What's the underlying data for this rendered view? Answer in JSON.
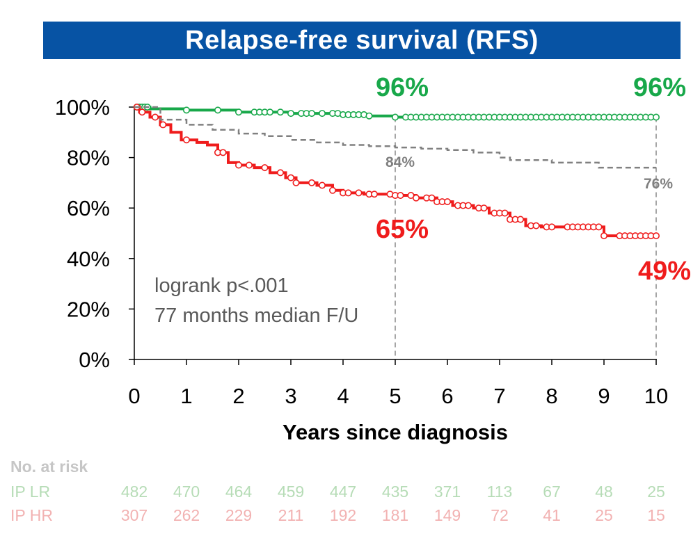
{
  "colors": {
    "title_bg": "#0753a4",
    "green": "#18a84a",
    "red": "#ef1c1c",
    "gray": "#808080",
    "risk_green": "#b6dcb6",
    "risk_red": "#f2b2b2",
    "risk_header": "#c6c6c6"
  },
  "chart_data": {
    "type": "line",
    "title": "Relapse-free survival (RFS)",
    "xlabel": "Years since diagnosis",
    "ylabel": "",
    "xlim": [
      0,
      10
    ],
    "ylim": [
      0,
      100
    ],
    "x_ticks": [
      "0",
      "1",
      "2",
      "3",
      "4",
      "5",
      "6",
      "7",
      "8",
      "9",
      "10"
    ],
    "y_ticks": [
      "0%",
      "20%",
      "40%",
      "60%",
      "80%",
      "100%"
    ],
    "grid": false,
    "annotation_lines": [
      "logrank p<.001",
      "77 months median F/U"
    ],
    "reference_lines_x": [
      5,
      10
    ],
    "series": [
      {
        "name": "IP LR",
        "color": "#18a84a",
        "points": [
          [
            0,
            100
          ],
          [
            0.3,
            99.3
          ],
          [
            1,
            98.8
          ],
          [
            2,
            98
          ],
          [
            3,
            97.5
          ],
          [
            4,
            97
          ],
          [
            4.5,
            96.5
          ],
          [
            5,
            96
          ],
          [
            6,
            96
          ],
          [
            7,
            96
          ],
          [
            8,
            96
          ],
          [
            9,
            96
          ],
          [
            10,
            96
          ]
        ],
        "censor_x": [
          0.05,
          0.1,
          0.15,
          0.2,
          0.25,
          1,
          1.6,
          2,
          2.3,
          2.4,
          2.5,
          2.6,
          2.8,
          3,
          3.2,
          3.3,
          3.4,
          3.6,
          3.8,
          3.9,
          4,
          4.1,
          4.2,
          4.3,
          4.4,
          4.5,
          5,
          5.2,
          5.3,
          5.4,
          5.5,
          5.6,
          5.7,
          5.8,
          5.9,
          6,
          6.1,
          6.2,
          6.3,
          6.4,
          6.5,
          6.6,
          6.7,
          6.8,
          6.9,
          7,
          7.1,
          7.2,
          7.3,
          7.4,
          7.5,
          7.6,
          7.7,
          7.8,
          7.9,
          8,
          8.1,
          8.2,
          8.3,
          8.4,
          8.5,
          8.6,
          8.7,
          8.8,
          8.9,
          9,
          9.1,
          9.2,
          9.3,
          9.4,
          9.5,
          9.6,
          9.7,
          9.8,
          9.9,
          10
        ],
        "labels": [
          {
            "x": 5,
            "text": "96%"
          },
          {
            "x": 10,
            "text": "96%"
          }
        ]
      },
      {
        "name": "IP HR",
        "color": "#ef1c1c",
        "points": [
          [
            0,
            100
          ],
          [
            0.1,
            98
          ],
          [
            0.3,
            96
          ],
          [
            0.5,
            93
          ],
          [
            0.7,
            90
          ],
          [
            0.9,
            87
          ],
          [
            1.2,
            86
          ],
          [
            1.4,
            85
          ],
          [
            1.6,
            82
          ],
          [
            1.8,
            78
          ],
          [
            2,
            77
          ],
          [
            2.3,
            76
          ],
          [
            2.6,
            74
          ],
          [
            2.9,
            72
          ],
          [
            3.1,
            70
          ],
          [
            3.5,
            69
          ],
          [
            3.8,
            67
          ],
          [
            4,
            66
          ],
          [
            4.4,
            65.5
          ],
          [
            5,
            65
          ],
          [
            5.4,
            64
          ],
          [
            5.8,
            62.5
          ],
          [
            6.1,
            61
          ],
          [
            6.5,
            60
          ],
          [
            6.8,
            58
          ],
          [
            7.2,
            55.5
          ],
          [
            7.5,
            53
          ],
          [
            7.8,
            52.5
          ],
          [
            8.8,
            52.5
          ],
          [
            9,
            49
          ],
          [
            10,
            49
          ]
        ],
        "censor_x": [
          0.05,
          0.15,
          0.4,
          0.55,
          1,
          1.6,
          1.7,
          2,
          2.2,
          2.5,
          2.8,
          3,
          3.1,
          3.4,
          3.6,
          3.8,
          4,
          4.1,
          4.3,
          4.5,
          4.6,
          4.9,
          5,
          5.1,
          5.3,
          5.4,
          5.6,
          5.7,
          5.8,
          5.9,
          6,
          6.2,
          6.3,
          6.4,
          6.6,
          6.7,
          6.9,
          7,
          7.1,
          7.2,
          7.3,
          7.4,
          7.6,
          7.7,
          7.9,
          8,
          8.3,
          8.4,
          8.5,
          8.6,
          8.7,
          8.8,
          8.9,
          9,
          9.3,
          9.4,
          9.5,
          9.6,
          9.7,
          9.8,
          9.9,
          10
        ],
        "labels": [
          {
            "x": 5,
            "text": "65%"
          },
          {
            "x": 10,
            "text": "49%"
          }
        ]
      },
      {
        "name": "",
        "color": "#808080",
        "dashed": true,
        "points": [
          [
            0,
            100
          ],
          [
            0.5,
            95
          ],
          [
            1,
            93
          ],
          [
            1.5,
            91
          ],
          [
            2,
            89.5
          ],
          [
            2.5,
            88.5
          ],
          [
            3,
            87
          ],
          [
            3.5,
            86
          ],
          [
            4,
            85
          ],
          [
            4.5,
            84.5
          ],
          [
            5,
            84
          ],
          [
            5.5,
            83.5
          ],
          [
            6,
            83
          ],
          [
            6.5,
            82
          ],
          [
            7,
            80
          ],
          [
            7.2,
            79
          ],
          [
            8,
            78
          ],
          [
            8.8,
            78
          ],
          [
            8.9,
            76
          ],
          [
            10,
            76
          ]
        ],
        "labels": [
          {
            "x": 5,
            "text": "84%"
          },
          {
            "x": 10,
            "text": "76%"
          }
        ]
      }
    ],
    "risk_table": {
      "header": "No. at risk",
      "rows": [
        {
          "name": "IP LR",
          "values": [
            "482",
            "470",
            "464",
            "459",
            "447",
            "435",
            "371",
            "113",
            "67",
            "48",
            "25"
          ]
        },
        {
          "name": "IP HR",
          "values": [
            "307",
            "262",
            "229",
            "211",
            "192",
            "181",
            "149",
            "72",
            "41",
            "25",
            "15"
          ]
        }
      ]
    }
  }
}
